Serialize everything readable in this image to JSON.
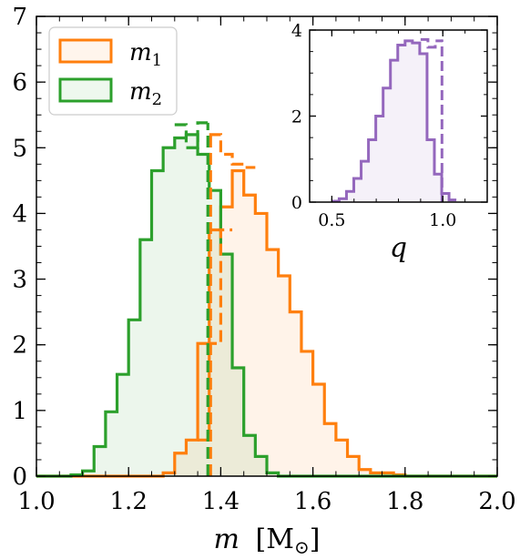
{
  "colors": {
    "m1": "#ff7f0e",
    "m2": "#2ca02c",
    "q": "#9467bd",
    "axis": "#000000"
  },
  "chart_data": [
    {
      "type": "histogram",
      "xlabel_var": "m",
      "xlabel_unit": "[M",
      "xlabel_unit_sub": "⊙",
      "xlabel_close": "]",
      "xlim": [
        1.0,
        2.0
      ],
      "ylim": [
        0,
        7
      ],
      "xticks": [
        1.0,
        1.2,
        1.4,
        1.6,
        1.8,
        2.0
      ],
      "xtick_labels": [
        "1.0",
        "1.2",
        "1.4",
        "1.6",
        "1.8",
        "2.0"
      ],
      "yticks": [
        0,
        1,
        2,
        3,
        4,
        5,
        6,
        7
      ],
      "ytick_labels": [
        "0",
        "1",
        "2",
        "3",
        "4",
        "5",
        "6",
        "7"
      ],
      "bin_width": 0.025,
      "legend": {
        "placement": "top-left",
        "entries": [
          {
            "base": "m",
            "sub": "1",
            "series": "m1"
          },
          {
            "base": "m",
            "sub": "2",
            "series": "m2"
          }
        ]
      },
      "series": [
        {
          "id": "m1",
          "style": "solid",
          "bins_start": 1.0,
          "values": [
            0,
            0,
            0,
            0,
            0,
            0,
            0,
            0,
            0,
            0,
            0,
            0.05,
            0.35,
            0.55,
            2.02,
            3.75,
            4.1,
            4.65,
            4.28,
            4.0,
            3.45,
            3.05,
            2.5,
            1.9,
            1.4,
            0.8,
            0.55,
            0.3,
            0.1,
            0.05,
            0.05,
            0.02,
            0,
            0,
            0,
            0,
            0,
            0,
            0,
            0
          ]
        },
        {
          "id": "m1_dashed",
          "style": "dashed",
          "bins_start": 1.375,
          "values": [
            5.2,
            4.9,
            4.75,
            4.7
          ]
        },
        {
          "id": "m2",
          "style": "solid",
          "bins_start": 1.0,
          "values": [
            0,
            0,
            0,
            0.02,
            0.08,
            0.45,
            0.98,
            1.55,
            2.38,
            3.6,
            4.65,
            5.0,
            5.15,
            5.2,
            4.9,
            4.35,
            3.38,
            1.65,
            0.62,
            0.3,
            0.05,
            0,
            0,
            0,
            0,
            0,
            0,
            0,
            0,
            0,
            0,
            0,
            0,
            0,
            0,
            0,
            0,
            0,
            0,
            0
          ]
        },
        {
          "id": "m2_dashed",
          "style": "dashed",
          "bins_start": 1.3,
          "values": [
            5.35,
            5.0,
            5.38
          ]
        },
        {
          "id": "m1_inner_dashed",
          "style": "dashed",
          "bins_start": 1.35,
          "values": [
            0.55,
            2.02,
            3.75
          ]
        }
      ],
      "cut_line_x": 1.375
    },
    {
      "type": "histogram",
      "inset": true,
      "xlabel": "q",
      "xlim": [
        0.4,
        1.2
      ],
      "ylim": [
        0,
        4
      ],
      "xticks": [
        0.5,
        1.0
      ],
      "xtick_labels": [
        "0.5",
        "1.0"
      ],
      "yticks": [
        0,
        2,
        4
      ],
      "ytick_labels": [
        "0",
        "2",
        "4"
      ],
      "bin_width": 0.033,
      "series": [
        {
          "id": "q",
          "style": "solid",
          "bins_start": 0.5,
          "values": [
            0.02,
            0.08,
            0.25,
            0.55,
            0.95,
            1.45,
            2.0,
            2.65,
            3.3,
            3.65,
            3.75,
            3.7,
            3.45,
            1.45,
            0.65,
            0.2,
            0.05
          ]
        },
        {
          "id": "q_dashed",
          "style": "dashed",
          "bins_start": 0.9,
          "values": [
            3.78,
            3.6,
            3.75
          ]
        }
      ],
      "cut_line_x": 0.99
    }
  ]
}
